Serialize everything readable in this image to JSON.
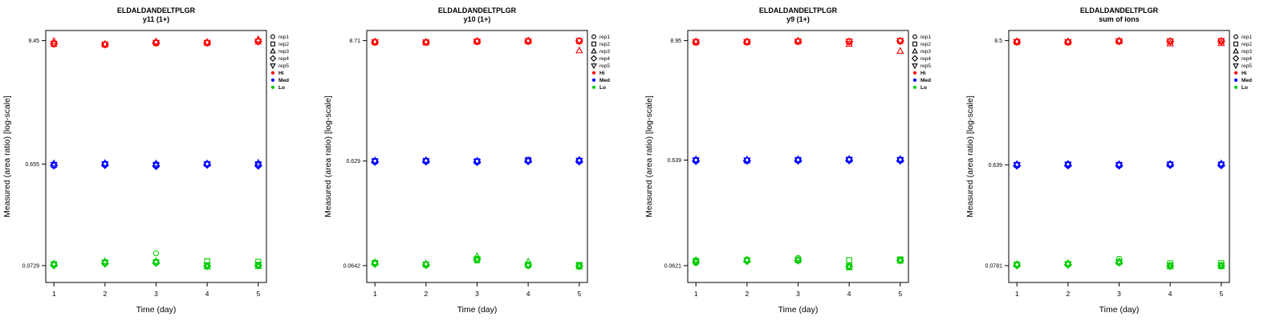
{
  "figure": {
    "xlabel": "Time (day)",
    "ylabel": "Measured (area ratio) [log-scale]",
    "x_ticks": [
      "1",
      "2",
      "3",
      "4",
      "5"
    ],
    "colors": {
      "hi": "#ff0000",
      "med": "#0000ff",
      "lo": "#00cc00",
      "axis": "#000000",
      "background": "#ffffff"
    },
    "legend": {
      "reps": [
        {
          "label": "rep1",
          "marker": "circle"
        },
        {
          "label": "rep2",
          "marker": "square"
        },
        {
          "label": "rep3",
          "marker": "triangle-up"
        },
        {
          "label": "rep4",
          "marker": "diamond"
        },
        {
          "label": "rep5",
          "marker": "triangle-down"
        }
      ],
      "levels": [
        {
          "label": "Hi",
          "color": "#ff0000"
        },
        {
          "label": "Med",
          "color": "#0000ff"
        },
        {
          "label": "Lo",
          "color": "#00cc00"
        }
      ]
    }
  },
  "chart_data": [
    {
      "type": "scatter",
      "title": "ELDALDANDELTPLGR",
      "subtitle": "y11 (1+)",
      "xlabel": "Time (day)",
      "ylabel": "Measured (area ratio) [log-scale]",
      "x": [
        1,
        2,
        3,
        4,
        5
      ],
      "y_scale": "log",
      "y_tick_labels": [
        "9.45",
        "0.655",
        "0.0729"
      ],
      "y_tick_values": [
        9.45,
        0.655,
        0.0729
      ],
      "series": [
        {
          "name": "Hi",
          "color": "#ff0000",
          "days": [
            [
              8.85,
              8.78,
              9.35,
              8.82,
              8.88
            ],
            [
              8.7,
              8.66,
              8.76,
              8.7,
              8.73
            ],
            [
              9.1,
              8.95,
              9.25,
              9.02,
              9.06
            ],
            [
              9.05,
              8.98,
              9.15,
              9.02,
              9.05
            ],
            [
              9.35,
              9.25,
              9.7,
              9.28,
              9.32
            ]
          ]
        },
        {
          "name": "Med",
          "color": "#0000ff",
          "days": [
            [
              0.63,
              0.642,
              0.662,
              0.636,
              0.646
            ],
            [
              0.65,
              0.655,
              0.668,
              0.641,
              0.652
            ],
            [
              0.641,
              0.646,
              0.661,
              0.627,
              0.637
            ],
            [
              0.651,
              0.656,
              0.663,
              0.646,
              0.652
            ],
            [
              0.643,
              0.652,
              0.672,
              0.632,
              0.647
            ]
          ]
        },
        {
          "name": "Lo",
          "color": "#00cc00",
          "days": [
            [
              0.074,
              0.0752,
              0.0762,
              0.0733,
              0.0745
            ],
            [
              0.077,
              0.0782,
              0.08,
              0.0763,
              0.0772
            ],
            [
              0.095,
              0.0785,
              0.0802,
              0.0775,
              0.0782
            ],
            [
              0.0732,
              0.08,
              0.0712,
              0.0722,
              0.0736
            ],
            [
              0.0742,
              0.0792,
              0.0722,
              0.0731,
              0.0744
            ]
          ]
        }
      ]
    },
    {
      "type": "scatter",
      "title": "ELDALDANDELTPLGR",
      "subtitle": "y10 (1+)",
      "xlabel": "Time (day)",
      "ylabel": "Measured (area ratio) [log-scale]",
      "x": [
        1,
        2,
        3,
        4,
        5
      ],
      "y_scale": "log",
      "y_tick_labels": [
        "8.71",
        "0.629",
        "0.0642"
      ],
      "y_tick_values": [
        8.71,
        0.629,
        0.0642
      ],
      "series": [
        {
          "name": "Hi",
          "color": "#ff0000",
          "days": [
            [
              8.45,
              8.4,
              8.52,
              8.44,
              8.47
            ],
            [
              8.4,
              8.36,
              8.46,
              8.4,
              8.42
            ],
            [
              8.6,
              8.52,
              8.66,
              8.56,
              8.58
            ],
            [
              8.65,
              8.58,
              8.72,
              8.6,
              8.63
            ],
            [
              8.7,
              8.62,
              7.0,
              8.64,
              8.67
            ]
          ]
        },
        {
          "name": "Med",
          "color": "#0000ff",
          "days": [
            [
              0.622,
              0.628,
              0.636,
              0.618,
              0.626
            ],
            [
              0.627,
              0.631,
              0.64,
              0.622,
              0.629
            ],
            [
              0.621,
              0.625,
              0.633,
              0.616,
              0.622
            ],
            [
              0.63,
              0.645,
              0.638,
              0.626,
              0.632
            ],
            [
              0.629,
              0.634,
              0.646,
              0.624,
              0.632
            ]
          ]
        },
        {
          "name": "Lo",
          "color": "#00cc00",
          "days": [
            [
              0.0672,
              0.068,
              0.069,
              0.0666,
              0.0675
            ],
            [
              0.066,
              0.0655,
              0.0672,
              0.065,
              0.066
            ],
            [
              0.0745,
              0.072,
              0.079,
              0.0735,
              0.0742
            ],
            [
              0.0655,
              0.0648,
              0.07,
              0.0645,
              0.0652
            ],
            [
              0.0645,
              0.0652,
              0.0628,
              0.0635,
              0.0642
            ]
          ]
        }
      ]
    },
    {
      "type": "scatter",
      "title": "ELDALDANDELTPLGR",
      "subtitle": "y9 (1+)",
      "xlabel": "Time (day)",
      "ylabel": "Measured (area ratio) [log-scale]",
      "x": [
        1,
        2,
        3,
        4,
        5
      ],
      "y_scale": "log",
      "y_tick_labels": [
        "8.95",
        "0.639",
        "0.0621"
      ],
      "y_tick_values": [
        8.95,
        0.639,
        0.0621
      ],
      "series": [
        {
          "name": "Hi",
          "color": "#ff0000",
          "days": [
            [
              8.7,
              8.62,
              8.8,
              8.68,
              8.72
            ],
            [
              8.72,
              8.66,
              8.78,
              8.7,
              8.73
            ],
            [
              8.85,
              8.78,
              8.95,
              8.8,
              8.84
            ],
            [
              8.8,
              8.74,
              8.3,
              8.76,
              8.79
            ],
            [
              8.95,
              8.88,
              7.1,
              8.86,
              8.9
            ]
          ]
        },
        {
          "name": "Med",
          "color": "#0000ff",
          "days": [
            [
              0.633,
              0.638,
              0.648,
              0.626,
              0.635
            ],
            [
              0.636,
              0.633,
              0.646,
              0.63,
              0.637
            ],
            [
              0.636,
              0.641,
              0.65,
              0.632,
              0.638
            ],
            [
              0.64,
              0.645,
              0.654,
              0.636,
              0.642
            ],
            [
              0.638,
              0.643,
              0.652,
              0.633,
              0.64
            ]
          ]
        },
        {
          "name": "Lo",
          "color": "#00cc00",
          "days": [
            [
              0.0655,
              0.069,
              0.07,
              0.0672,
              0.068
            ],
            [
              0.069,
              0.07,
              0.0712,
              0.0685,
              0.0693
            ],
            [
              0.0735,
              0.07,
              0.0712,
              0.0695,
              0.0702
            ],
            [
              0.0602,
              0.07,
              0.0596,
              0.0608,
              0.0614
            ],
            [
              0.07,
              0.0712,
              0.0692,
              0.0696,
              0.0704
            ]
          ]
        }
      ]
    },
    {
      "type": "scatter",
      "title": "ELDALDANDELTPLGR",
      "subtitle": "sum of ions",
      "xlabel": "Time (day)",
      "ylabel": "Measured (area ratio) [log-scale]",
      "x": [
        1,
        2,
        3,
        4,
        5
      ],
      "y_scale": "log",
      "y_tick_labels": [
        "8.5",
        "0.639",
        "0.0781"
      ],
      "y_tick_values": [
        8.5,
        0.639,
        0.0781
      ],
      "series": [
        {
          "name": "Hi",
          "color": "#ff0000",
          "days": [
            [
              8.3,
              8.24,
              8.38,
              8.28,
              8.32
            ],
            [
              8.28,
              8.22,
              8.34,
              8.26,
              8.29
            ],
            [
              8.44,
              8.38,
              8.48,
              8.4,
              8.43
            ],
            [
              8.42,
              8.36,
              8.0,
              8.38,
              8.41
            ],
            [
              8.48,
              8.42,
              8.05,
              8.4,
              8.45
            ]
          ]
        },
        {
          "name": "Med",
          "color": "#0000ff",
          "days": [
            [
              0.633,
              0.638,
              0.648,
              0.628,
              0.636
            ],
            [
              0.638,
              0.643,
              0.652,
              0.63,
              0.64
            ],
            [
              0.634,
              0.638,
              0.648,
              0.628,
              0.635
            ],
            [
              0.64,
              0.644,
              0.652,
              0.636,
              0.641
            ],
            [
              0.638,
              0.644,
              0.655,
              0.633,
              0.641
            ]
          ]
        },
        {
          "name": "Lo",
          "color": "#00cc00",
          "days": [
            [
              0.079,
              0.0798,
              0.0806,
              0.0784,
              0.0792
            ],
            [
              0.08,
              0.081,
              0.0822,
              0.0795,
              0.0803
            ],
            [
              0.09,
              0.084,
              0.0852,
              0.0832,
              0.084
            ],
            [
              0.0782,
              0.082,
              0.0768,
              0.0775,
              0.0786
            ],
            [
              0.0786,
              0.0822,
              0.077,
              0.0778,
              0.079
            ]
          ]
        }
      ]
    }
  ]
}
